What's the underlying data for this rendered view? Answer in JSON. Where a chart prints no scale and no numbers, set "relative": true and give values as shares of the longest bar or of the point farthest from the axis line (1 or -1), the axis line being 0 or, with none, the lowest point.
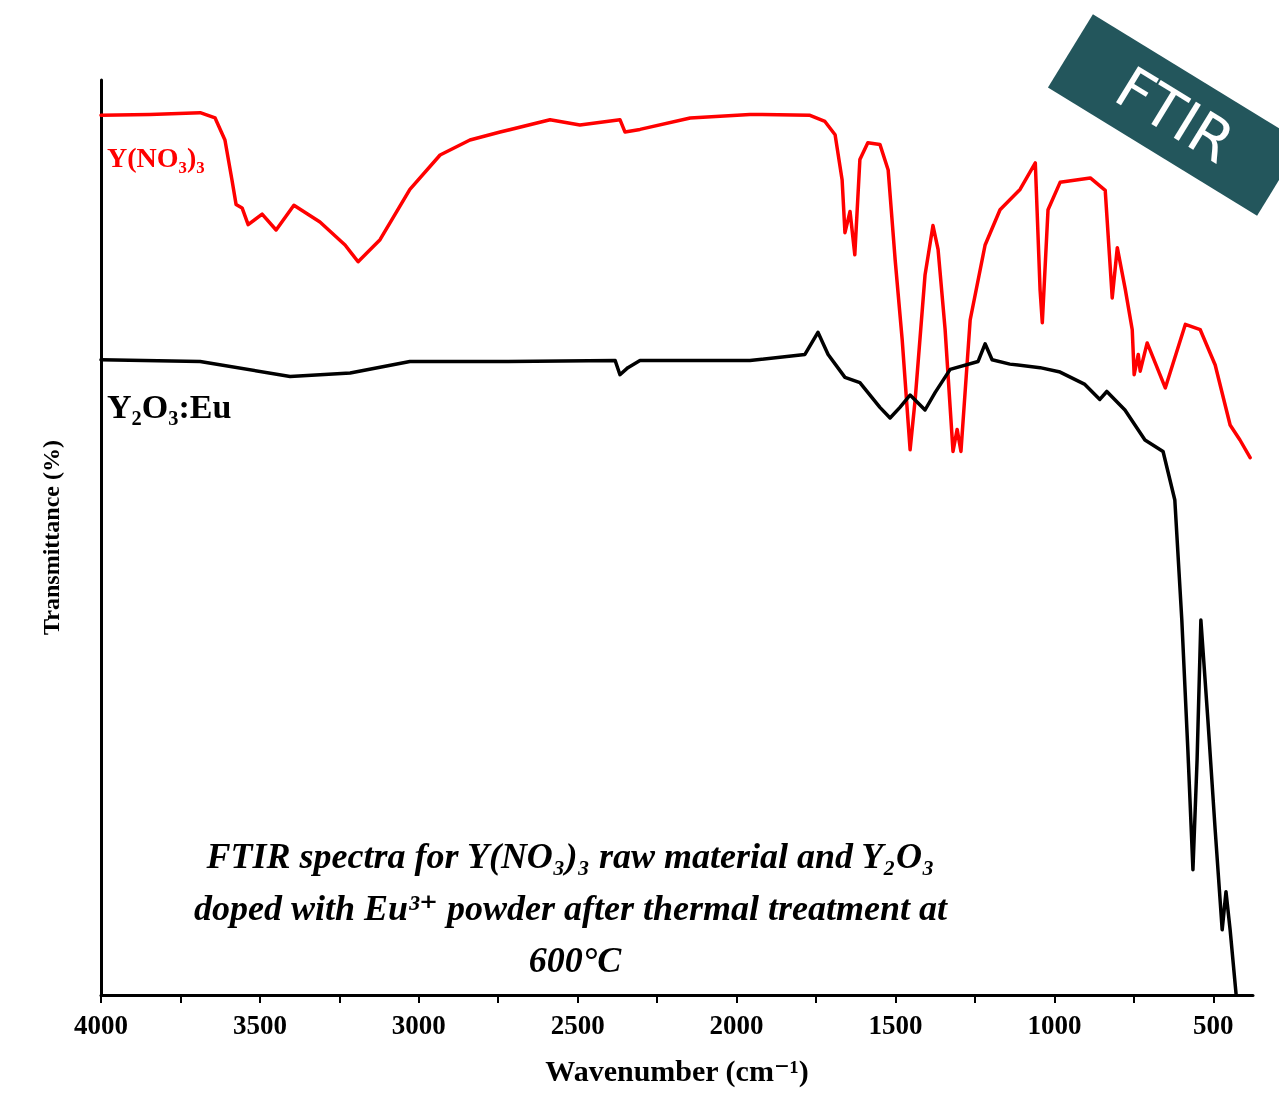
{
  "chart_data": {
    "type": "line",
    "relative": true,
    "xlabel": "Wavenumber (cm⁻¹)",
    "ylabel": "Transmittance (%)",
    "xlim": [
      4000,
      375
    ],
    "xticks": [
      4000,
      {
        "value": 3750,
        "label": null
      },
      3500,
      {
        "value": 3250,
        "label": null
      },
      3000,
      {
        "value": 2750,
        "label": null
      },
      2500,
      {
        "value": 2250,
        "label": null
      },
      2000,
      {
        "value": 1750,
        "label": null
      },
      1500,
      {
        "value": 1250,
        "label": null
      },
      1000,
      {
        "value": 750,
        "label": null
      },
      500
    ],
    "grid": false,
    "legend": false,
    "marker": "none",
    "line_style": "solid",
    "annotations": [
      "FTIR spectra for Y(NO₃)₃ raw material and Y₂O₃ doped with Eu³⁺ powder after thermal treatment at 600°C",
      "FTIR"
    ],
    "series": [
      {
        "name": "Y(NO₃)₃",
        "color": "#ff0000",
        "x": [
          4000,
          3846,
          3688,
          3641,
          3610,
          3588,
          3575,
          3556,
          3537,
          3493,
          3449,
          3393,
          3311,
          3232,
          3191,
          3122,
          3028,
          2933,
          2839,
          2744,
          2587,
          2493,
          2367,
          2351,
          2304,
          2146,
          1958,
          1769,
          1722,
          1690,
          1668,
          1659,
          1643,
          1628,
          1612,
          1587,
          1549,
          1523,
          1501,
          1479,
          1454,
          1438,
          1407,
          1382,
          1366,
          1344,
          1319,
          1306,
          1294,
          1265,
          1218,
          1171,
          1108,
          1060,
          1045,
          1038,
          1020,
          982,
          887,
          840,
          818,
          802,
          777,
          755,
          749,
          736,
          730,
          708,
          651,
          588,
          541,
          494,
          447,
          416,
          384
        ],
        "values": [
          0.997,
          0.998,
          1.0,
          0.994,
          0.969,
          0.924,
          0.896,
          0.892,
          0.873,
          0.885,
          0.867,
          0.895,
          0.876,
          0.85,
          0.831,
          0.856,
          0.913,
          0.952,
          0.969,
          0.978,
          0.992,
          0.986,
          0.992,
          0.978,
          0.981,
          0.994,
          0.998,
          0.997,
          0.99,
          0.975,
          0.924,
          0.864,
          0.888,
          0.839,
          0.947,
          0.966,
          0.964,
          0.935,
          0.833,
          0.743,
          0.618,
          0.675,
          0.816,
          0.872,
          0.845,
          0.755,
          0.616,
          0.641,
          0.616,
          0.765,
          0.85,
          0.89,
          0.913,
          0.943,
          0.799,
          0.762,
          0.89,
          0.921,
          0.926,
          0.912,
          0.79,
          0.847,
          0.8,
          0.754,
          0.703,
          0.726,
          0.707,
          0.739,
          0.688,
          0.76,
          0.754,
          0.714,
          0.646,
          0.629,
          0.609
        ]
      },
      {
        "name": "Y₂O₃:Eu",
        "color": "#000000",
        "x": [
          4000,
          3688,
          3405,
          3216,
          3028,
          2744,
          2382,
          2367,
          2342,
          2304,
          1958,
          1785,
          1744,
          1712,
          1659,
          1612,
          1549,
          1517,
          1486,
          1454,
          1407,
          1375,
          1328,
          1240,
          1218,
          1196,
          1140,
          1045,
          982,
          904,
          857,
          835,
          778,
          715,
          658,
          621,
          599,
          580,
          564,
          551,
          539,
          517,
          494,
          472,
          460,
          447,
          428
        ],
        "values": [
          0.72,
          0.718,
          0.701,
          0.705,
          0.718,
          0.718,
          0.719,
          0.703,
          0.711,
          0.719,
          0.719,
          0.726,
          0.751,
          0.726,
          0.7,
          0.694,
          0.666,
          0.654,
          0.666,
          0.68,
          0.663,
          0.683,
          0.709,
          0.718,
          0.738,
          0.72,
          0.715,
          0.711,
          0.706,
          0.692,
          0.675,
          0.684,
          0.663,
          0.629,
          0.616,
          0.561,
          0.425,
          0.278,
          0.142,
          0.266,
          0.425,
          0.312,
          0.187,
          0.074,
          0.117,
          0.074,
          0.0
        ]
      }
    ]
  }
}
